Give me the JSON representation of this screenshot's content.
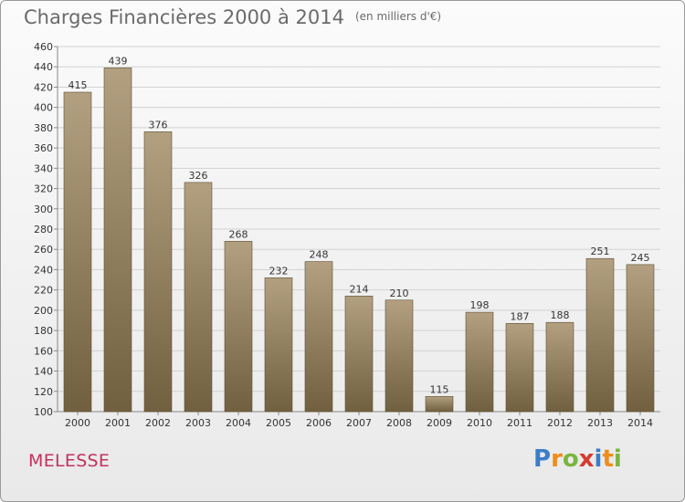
{
  "header": {
    "title": "Charges Financières 2000 à 2014",
    "subtitle": "(en milliers d'€)"
  },
  "commune": "MELESSE",
  "logo": {
    "letters": [
      {
        "char": "P",
        "color": "#3a7dc9"
      },
      {
        "char": "r",
        "color": "#f08c1a"
      },
      {
        "char": "o",
        "color": "#7ab540"
      },
      {
        "char": "x",
        "color": "#d63a2f"
      },
      {
        "char": "i",
        "color": "#3a7dc9"
      },
      {
        "char": "t",
        "color": "#f08c1a"
      },
      {
        "char": "i",
        "color": "#7ab540"
      }
    ]
  },
  "colors": {
    "bar_top": "#b2a081",
    "bar_bottom": "#71603f",
    "grid": "#d2d2d2",
    "axis_text": "#333333",
    "title": "#6a6a6a",
    "commune": "#c4305e"
  },
  "chart_data": {
    "type": "bar",
    "title": "Charges Financières 2000 à 2014",
    "subtitle": "(en milliers d'€)",
    "categories": [
      "2000",
      "2001",
      "2002",
      "2003",
      "2004",
      "2005",
      "2006",
      "2007",
      "2008",
      "2009",
      "2010",
      "2011",
      "2012",
      "2013",
      "2014"
    ],
    "values": [
      415,
      439,
      376,
      326,
      268,
      232,
      248,
      214,
      210,
      115,
      198,
      187,
      188,
      251,
      245
    ],
    "ylim": [
      100,
      460
    ],
    "yticks": [
      100,
      120,
      140,
      160,
      180,
      200,
      220,
      240,
      260,
      280,
      300,
      320,
      340,
      360,
      380,
      400,
      420,
      440,
      460
    ],
    "grid": true,
    "data_labels": true
  }
}
